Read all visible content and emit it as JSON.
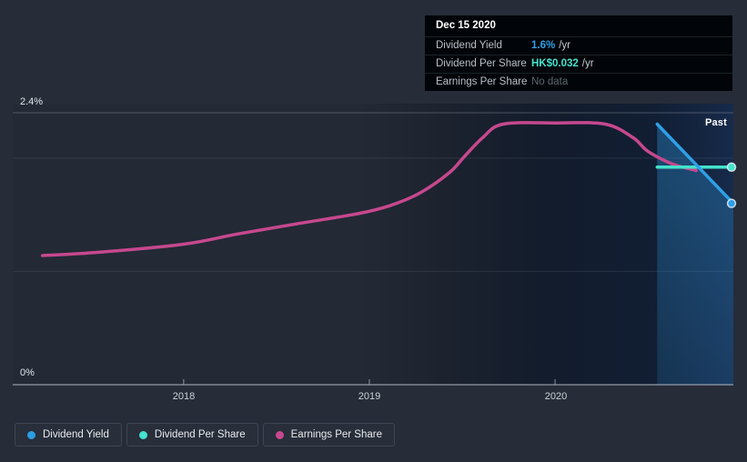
{
  "page": {
    "background": "#262c38"
  },
  "tooltip": {
    "title": "Dec 15 2020",
    "rows": [
      {
        "label": "Dividend Yield",
        "value": "1.6%",
        "suffix": "/yr",
        "value_color": "#2da0e8"
      },
      {
        "label": "Dividend Per Share",
        "value": "HK$0.032",
        "suffix": "/yr",
        "value_color": "#45e2cd"
      },
      {
        "label": "Earnings Per Share",
        "value": "No data",
        "suffix": "",
        "value_color": "#5d6670"
      }
    ]
  },
  "chart_data": {
    "type": "line",
    "xlim": [
      2017.08,
      2020.96
    ],
    "ylim": [
      0,
      2.4
    ],
    "y_axis_labels": {
      "top": "2.4%",
      "bottom": "0%"
    },
    "grid_values": [
      1.0,
      2.0
    ],
    "x_ticks": [
      {
        "label": "2018",
        "year": 2018
      },
      {
        "label": "2019",
        "year": 2019
      },
      {
        "label": "2020",
        "year": 2020
      }
    ],
    "past_label": "Past",
    "series": [
      {
        "name": "Earnings Per Share",
        "color": "#c6488e",
        "area": false,
        "end_dot": false,
        "points": [
          [
            2017.24,
            1.14
          ],
          [
            2017.55,
            1.17
          ],
          [
            2018.0,
            1.24
          ],
          [
            2018.29,
            1.33
          ],
          [
            2018.61,
            1.42
          ],
          [
            2018.94,
            1.51
          ],
          [
            2019.11,
            1.58
          ],
          [
            2019.27,
            1.69
          ],
          [
            2019.43,
            1.87
          ],
          [
            2019.51,
            2.01
          ],
          [
            2019.61,
            2.18
          ],
          [
            2019.72,
            2.3
          ],
          [
            2020.0,
            2.31
          ],
          [
            2020.27,
            2.3
          ],
          [
            2020.42,
            2.18
          ],
          [
            2020.5,
            2.06
          ],
          [
            2020.63,
            1.95
          ],
          [
            2020.76,
            1.89
          ]
        ]
      },
      {
        "name": "Dividend Per Share",
        "color": "#45e2cd",
        "area": false,
        "end_dot": true,
        "value_label": "HK$0.032/yr",
        "points": [
          [
            2020.55,
            1.92
          ],
          [
            2020.96,
            1.92
          ]
        ]
      },
      {
        "name": "Dividend Yield",
        "color": "#2f9fe8",
        "area": true,
        "end_dot": true,
        "points": [
          [
            2020.55,
            2.3
          ],
          [
            2020.96,
            1.6
          ]
        ]
      }
    ]
  },
  "legend": {
    "items": [
      {
        "label": "Dividend Yield",
        "color": "#2b9de4"
      },
      {
        "label": "Dividend Per Share",
        "color": "#45e2cd"
      },
      {
        "label": "Earnings Per Share",
        "color": "#c6488e"
      }
    ]
  }
}
